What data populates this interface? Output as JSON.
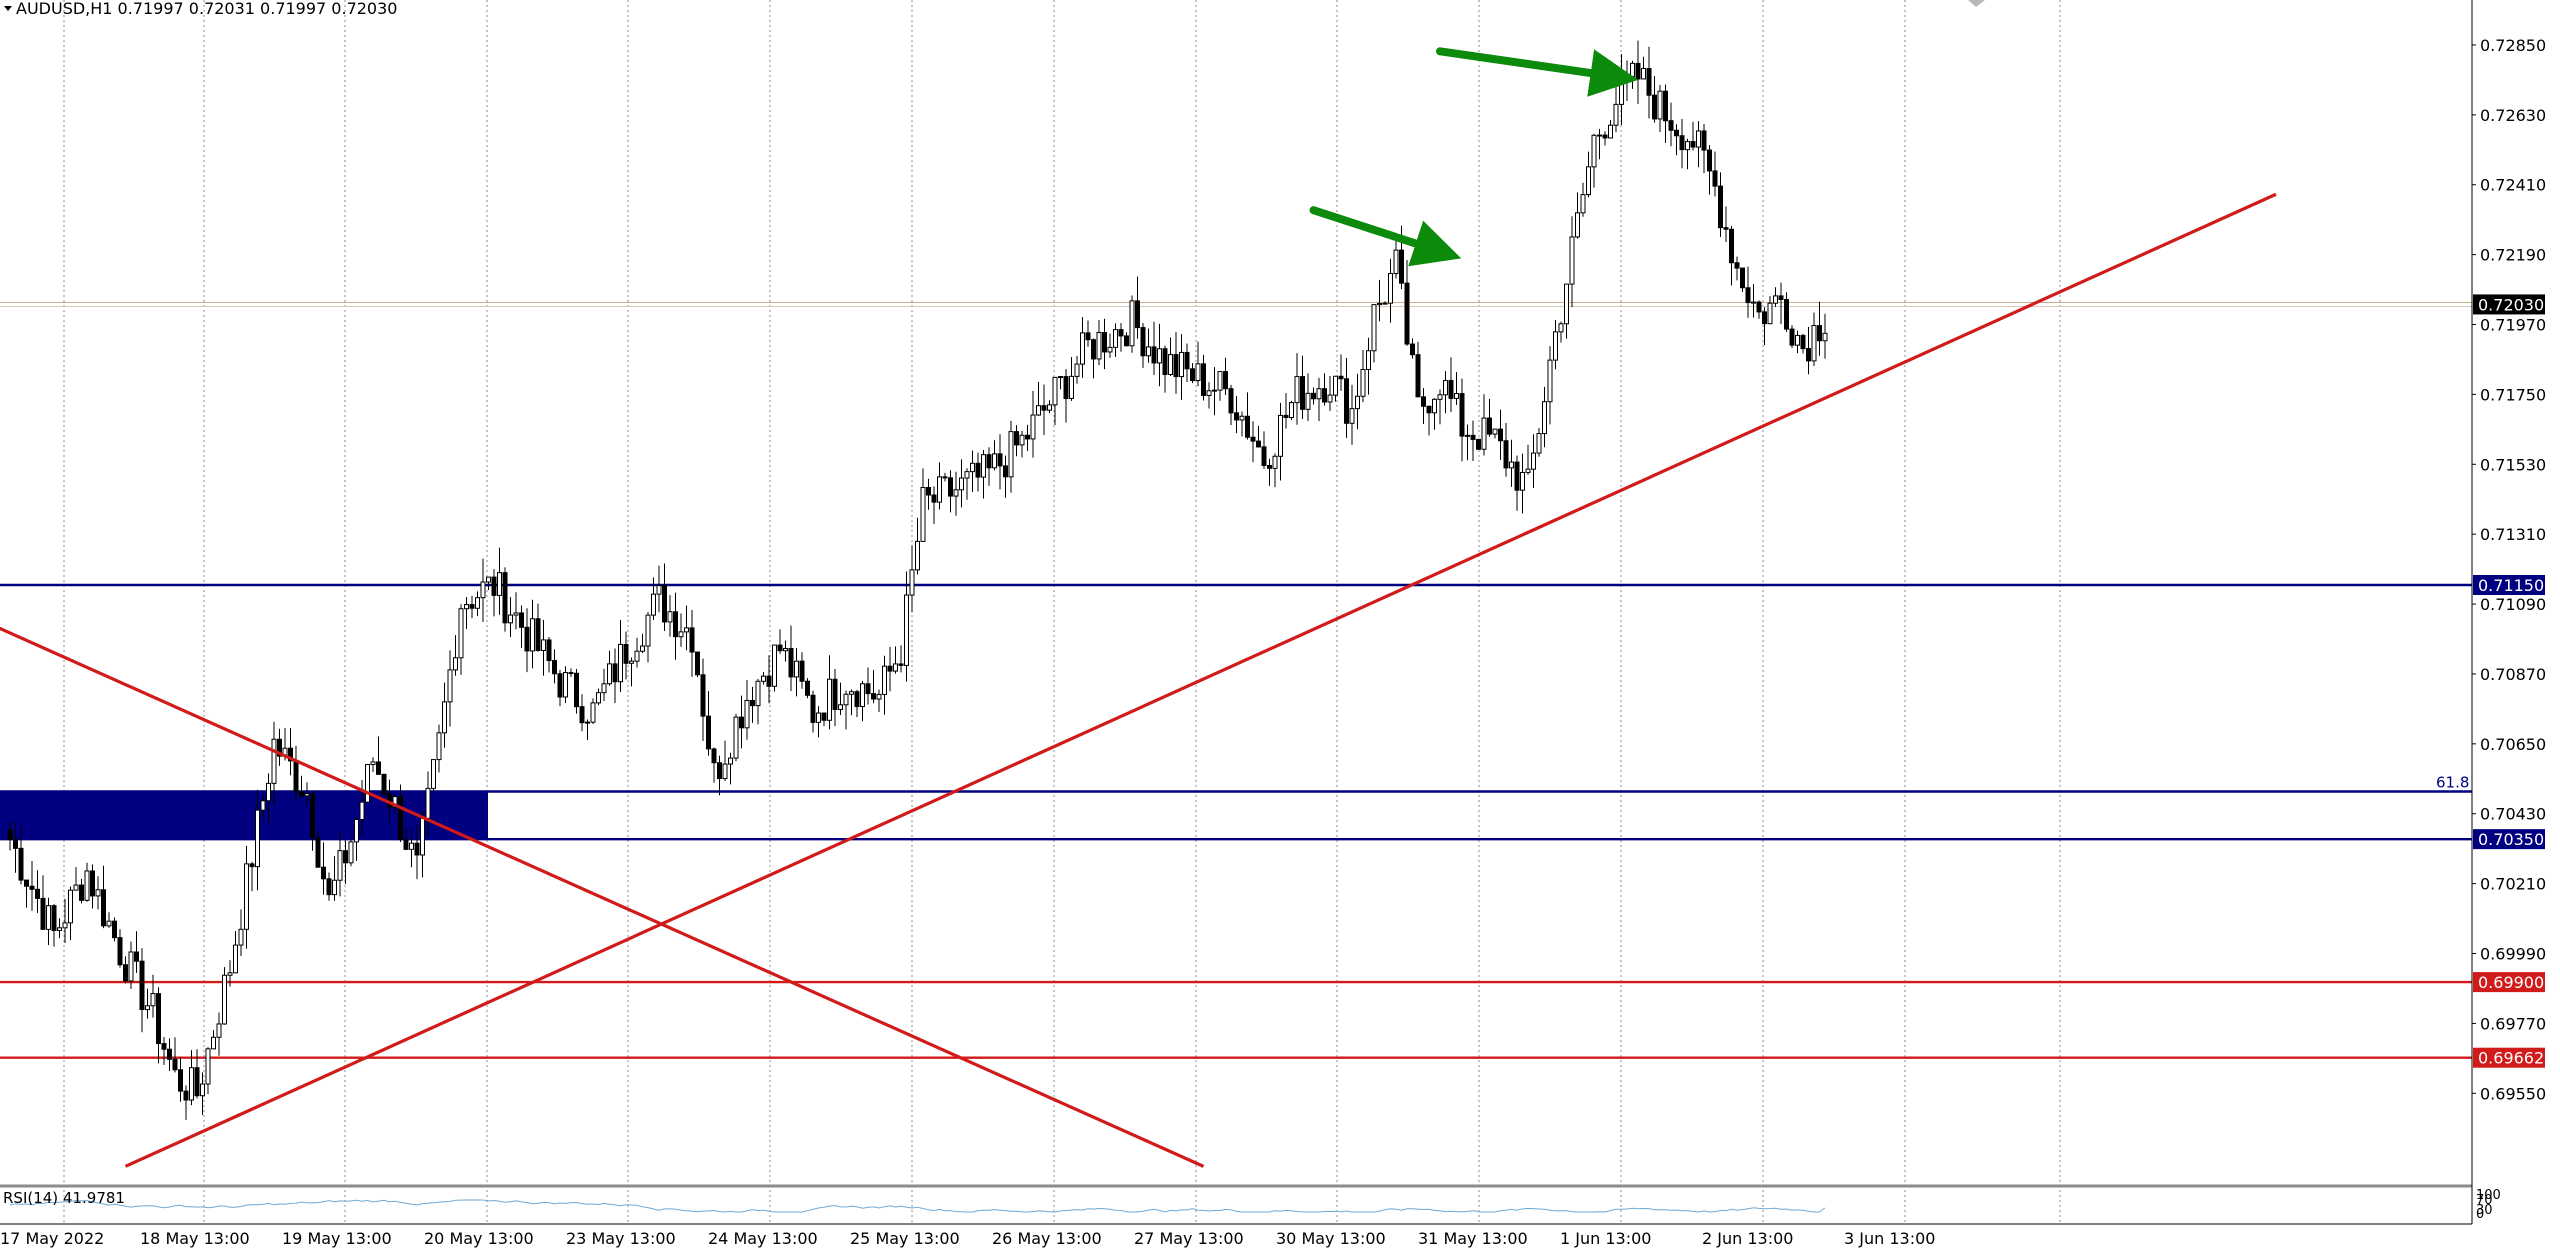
{
  "header": {
    "symbol_line": "AUDUSD,H1  0.71997 0.72031 0.71997 0.72030"
  },
  "rsi_label": "RSI(14) 41.9781",
  "colors": {
    "candle": "#000000",
    "grid": "#8c8c8c",
    "support": "#000080",
    "resistance_red": "#d11a1a",
    "trend_red": "#d11a1a",
    "arrow_green": "#0b8a0b",
    "price_line": "#c9b08d",
    "rsi_line": "#6fa9d6"
  },
  "chart_data": {
    "type": "candlestick",
    "symbol": "AUDUSD",
    "timeframe": "H1",
    "ylim": [
      0.6934,
      0.7296
    ],
    "y_ticks": [
      "0.72850",
      "0.72630",
      "0.72410",
      "0.72190",
      "0.71970",
      "0.71750",
      "0.71530",
      "0.71310",
      "0.71090",
      "0.70870",
      "0.70650",
      "0.70430",
      "0.70210",
      "0.69990",
      "0.69770",
      "0.69550"
    ],
    "x_ticks": [
      "17 May 2022",
      "18 May 13:00",
      "19 May 13:00",
      "20 May 13:00",
      "23 May 13:00",
      "24 May 13:00",
      "25 May 13:00",
      "26 May 13:00",
      "27 May 13:00",
      "30 May 13:00",
      "31 May 13:00",
      "1 Jun 13:00",
      "2 Jun 13:00",
      "3 Jun 13:00"
    ],
    "price_keypoints": [
      [
        0,
        0.7035
      ],
      [
        8,
        0.7005
      ],
      [
        14,
        0.7025
      ],
      [
        20,
        0.7
      ],
      [
        26,
        0.698
      ],
      [
        30,
        0.696
      ],
      [
        34,
        0.6955
      ],
      [
        40,
        0.6995
      ],
      [
        44,
        0.703
      ],
      [
        48,
        0.7065
      ],
      [
        54,
        0.705
      ],
      [
        58,
        0.7015
      ],
      [
        62,
        0.7035
      ],
      [
        66,
        0.706
      ],
      [
        70,
        0.7045
      ],
      [
        74,
        0.7025
      ],
      [
        78,
        0.7065
      ],
      [
        82,
        0.711
      ],
      [
        88,
        0.7115
      ],
      [
        94,
        0.71
      ],
      [
        100,
        0.7085
      ],
      [
        106,
        0.7075
      ],
      [
        112,
        0.7095
      ],
      [
        118,
        0.711
      ],
      [
        124,
        0.71
      ],
      [
        128,
        0.7055
      ],
      [
        134,
        0.708
      ],
      [
        140,
        0.7095
      ],
      [
        146,
        0.7075
      ],
      [
        152,
        0.7085
      ],
      [
        158,
        0.708
      ],
      [
        162,
        0.7095
      ],
      [
        166,
        0.714
      ],
      [
        172,
        0.7145
      ],
      [
        178,
        0.715
      ],
      [
        184,
        0.716
      ],
      [
        190,
        0.7175
      ],
      [
        196,
        0.719
      ],
      [
        204,
        0.7198
      ],
      [
        210,
        0.7185
      ],
      [
        216,
        0.718
      ],
      [
        222,
        0.7175
      ],
      [
        228,
        0.7155
      ],
      [
        234,
        0.7175
      ],
      [
        240,
        0.718
      ],
      [
        244,
        0.717
      ],
      [
        248,
        0.72
      ],
      [
        252,
        0.7215
      ],
      [
        256,
        0.717
      ],
      [
        260,
        0.718
      ],
      [
        264,
        0.7165
      ],
      [
        270,
        0.716
      ],
      [
        276,
        0.7145
      ],
      [
        280,
        0.7185
      ],
      [
        284,
        0.722
      ],
      [
        288,
        0.7255
      ],
      [
        292,
        0.7268
      ],
      [
        296,
        0.7275
      ],
      [
        300,
        0.7265
      ],
      [
        306,
        0.7255
      ],
      [
        310,
        0.724
      ],
      [
        314,
        0.7215
      ],
      [
        318,
        0.72
      ],
      [
        322,
        0.7205
      ],
      [
        326,
        0.719
      ],
      [
        330,
        0.72
      ]
    ],
    "horizontal_levels": [
      {
        "price": 0.7115,
        "label": "0.71150",
        "color": "#000080"
      },
      {
        "price": 0.705,
        "label": "",
        "color": "#000080",
        "fib_label": "61.8"
      },
      {
        "price": 0.7035,
        "label": "0.70350",
        "color": "#000080"
      },
      {
        "price": 0.699,
        "label": "0.69900",
        "color": "#d11a1a"
      },
      {
        "price": 0.69662,
        "label": "0.69662",
        "color": "#d11a1a"
      }
    ],
    "supply_zone": {
      "price_top": 0.705,
      "price_bottom": 0.7035
    },
    "current_price": {
      "price": 0.7203,
      "label": "0.72030"
    },
    "trendlines": [
      {
        "from": [
          -4,
          0.7103
        ],
        "to": [
          217,
          0.6932
        ],
        "color": "#d11a1a"
      },
      {
        "from": [
          21,
          0.6932
        ],
        "to": [
          412,
          0.7238
        ],
        "color": "#d11a1a"
      }
    ],
    "annotation_arrows": [
      {
        "from": [
          237,
          0.7233
        ],
        "to": [
          260,
          0.722
        ],
        "color": "#0b8a0b"
      },
      {
        "from": [
          260,
          0.7283
        ],
        "to": [
          292,
          0.7275
        ],
        "color": "#0b8a0b"
      }
    ],
    "rsi": {
      "period": 14,
      "value": 41.9781,
      "scale": [
        0,
        100
      ],
      "scale_labels": [
        "100",
        "70",
        "30",
        "0"
      ]
    }
  }
}
